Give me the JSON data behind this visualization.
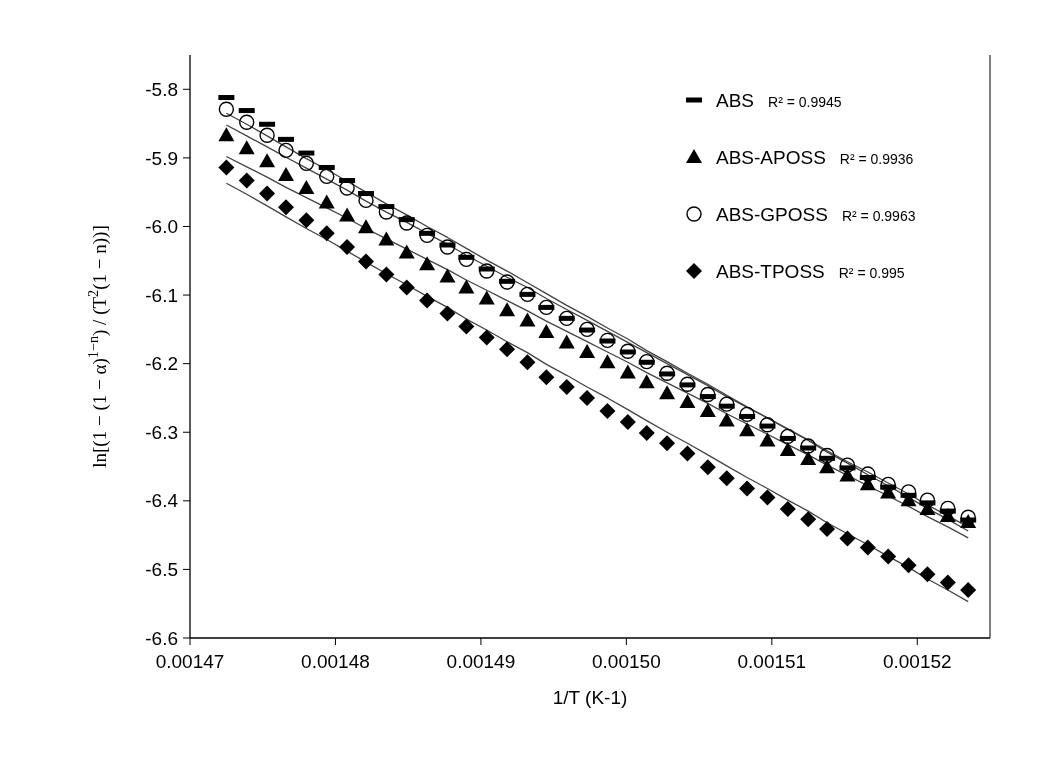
{
  "chart_data": {
    "type": "scatter",
    "xlabel": "1/T (K-1)",
    "ylabel": "ln[(1 − (1 − α)$^{1−n}$) / (T$^{2}$(1 − n))]",
    "xlim": [
      0.00147,
      0.001525
    ],
    "ylim": [
      -6.6,
      -5.75
    ],
    "xticks": [
      0.00147,
      0.00148,
      0.00149,
      {
        "value": 0.0015,
        "label": "0.00150"
      },
      0.00151,
      0.00152
    ],
    "yticks": [
      -6.6,
      -6.5,
      -6.4,
      -6.3,
      -6.2,
      -6.1,
      {
        "value": -6,
        "label": "-6.0"
      },
      -5.9,
      -5.8
    ],
    "legend": "top right",
    "grid": false,
    "annotations": [
      "R² = 0.9945",
      "R² = 0.9936",
      "R² = 0.9963",
      "R² = 0.995"
    ],
    "x": [
      0.0014725,
      0.0014739,
      0.0014753,
      0.0014766,
      0.001478,
      0.0014794,
      0.0014808,
      0.0014821,
      0.0014835,
      0.0014849,
      0.0014863,
      0.0014877,
      0.001489,
      0.0014904,
      0.0014918,
      0.0014932,
      0.0014945,
      0.0014959,
      0.0014973,
      0.0014987,
      0.0015001,
      0.0015014,
      0.0015028,
      0.0015042,
      0.0015056,
      0.0015069,
      0.0015083,
      0.0015097,
      0.0015111,
      0.0015125,
      0.0015138,
      0.0015152,
      0.0015166,
      0.001518,
      0.0015194,
      0.0015207,
      0.0015221,
      0.0015235
    ],
    "series": [
      {
        "name": "ABS",
        "marker": "square",
        "color": "#000000",
        "values": [
          -5.812,
          -5.831,
          -5.851,
          -5.873,
          -5.893,
          -5.914,
          -5.933,
          -5.952,
          -5.971,
          -5.99,
          -6.01,
          -6.027,
          -6.045,
          -6.062,
          -6.08,
          -6.099,
          -6.118,
          -6.134,
          -6.151,
          -6.167,
          -6.183,
          -6.198,
          -6.215,
          -6.231,
          -6.248,
          -6.262,
          -6.277,
          -6.291,
          -6.309,
          -6.323,
          -6.338,
          -6.352,
          -6.366,
          -6.38,
          -6.392,
          -6.403,
          -6.415,
          -6.428
        ]
      },
      {
        "name": "ABS-APOSS",
        "marker": "triangle",
        "color": "#000000",
        "values": [
          -5.867,
          -5.886,
          -5.905,
          -5.925,
          -5.944,
          -5.965,
          -5.984,
          -6.001,
          -6.019,
          -6.038,
          -6.055,
          -6.073,
          -6.089,
          -6.105,
          -6.122,
          -6.137,
          -6.154,
          -6.169,
          -6.183,
          -6.198,
          -6.213,
          -6.227,
          -6.243,
          -6.256,
          -6.269,
          -6.283,
          -6.297,
          -6.312,
          -6.326,
          -6.339,
          -6.351,
          -6.363,
          -6.376,
          -6.388,
          -6.399,
          -6.412,
          -6.422,
          -6.431
        ]
      },
      {
        "name": "ABS-GPOSS",
        "marker": "circle-open",
        "color": "#000000",
        "values": [
          -5.829,
          -5.848,
          -5.867,
          -5.889,
          -5.908,
          -5.927,
          -5.944,
          -5.962,
          -5.979,
          -5.995,
          -6.013,
          -6.03,
          -6.048,
          -6.065,
          -6.081,
          -6.099,
          -6.118,
          -6.134,
          -6.15,
          -6.166,
          -6.182,
          -6.197,
          -6.214,
          -6.23,
          -6.245,
          -6.259,
          -6.274,
          -6.289,
          -6.306,
          -6.32,
          -6.334,
          -6.348,
          -6.361,
          -6.376,
          -6.387,
          -6.399,
          -6.411,
          -6.424
        ]
      },
      {
        "name": "ABS-TPOSS",
        "marker": "diamond",
        "color": "#000000",
        "values": [
          -5.914,
          -5.933,
          -5.952,
          -5.972,
          -5.991,
          -6.01,
          -6.03,
          -6.051,
          -6.07,
          -6.089,
          -6.108,
          -6.127,
          -6.146,
          -6.162,
          -6.179,
          -6.198,
          -6.22,
          -6.234,
          -6.25,
          -6.269,
          -6.285,
          -6.301,
          -6.316,
          -6.331,
          -6.351,
          -6.367,
          -6.382,
          -6.395,
          -6.412,
          -6.427,
          -6.441,
          -6.455,
          -6.468,
          -6.481,
          -6.494,
          -6.507,
          -6.519,
          -6.53
        ]
      },
      {
        "type": "line",
        "color": "#444444",
        "values": [
          -5.835,
          -5.851,
          -5.868,
          -5.884,
          -5.901,
          -5.917,
          -5.934,
          -5.95,
          -5.967,
          -5.983,
          -6.0,
          -6.016,
          -6.032,
          -6.049,
          -6.065,
          -6.082,
          -6.098,
          -6.115,
          -6.131,
          -6.148,
          -6.164,
          -6.181,
          -6.197,
          -6.214,
          -6.23,
          -6.246,
          -6.263,
          -6.279,
          -6.296,
          -6.312,
          -6.329,
          -6.345,
          -6.362,
          -6.378,
          -6.395,
          -6.411,
          -6.427,
          -6.444
        ]
      },
      {
        "type": "line",
        "color": "#444444",
        "values": [
          -5.898,
          -5.913,
          -5.928,
          -5.943,
          -5.958,
          -5.973,
          -5.988,
          -6.003,
          -6.018,
          -6.033,
          -6.048,
          -6.063,
          -6.078,
          -6.093,
          -6.108,
          -6.123,
          -6.138,
          -6.153,
          -6.168,
          -6.183,
          -6.198,
          -6.213,
          -6.228,
          -6.243,
          -6.258,
          -6.273,
          -6.288,
          -6.303,
          -6.318,
          -6.333,
          -6.348,
          -6.363,
          -6.378,
          -6.393,
          -6.408,
          -6.423,
          -6.438,
          -6.454
        ]
      },
      {
        "type": "line",
        "color": "#444444",
        "values": [
          -5.852,
          -5.868,
          -5.884,
          -5.899,
          -5.915,
          -5.931,
          -5.947,
          -5.963,
          -5.979,
          -5.994,
          -6.01,
          -6.026,
          -6.042,
          -6.058,
          -6.074,
          -6.089,
          -6.105,
          -6.121,
          -6.137,
          -6.153,
          -6.169,
          -6.184,
          -6.2,
          -6.216,
          -6.232,
          -6.248,
          -6.264,
          -6.279,
          -6.295,
          -6.311,
          -6.327,
          -6.343,
          -6.358,
          -6.374,
          -6.39,
          -6.406,
          -6.422,
          -6.438
        ]
      },
      {
        "type": "line",
        "color": "#444444",
        "values": [
          -5.937,
          -5.953,
          -5.97,
          -5.986,
          -6.003,
          -6.019,
          -6.036,
          -6.052,
          -6.069,
          -6.085,
          -6.102,
          -6.118,
          -6.135,
          -6.151,
          -6.168,
          -6.184,
          -6.201,
          -6.217,
          -6.234,
          -6.25,
          -6.267,
          -6.283,
          -6.3,
          -6.316,
          -6.333,
          -6.349,
          -6.366,
          -6.382,
          -6.399,
          -6.415,
          -6.432,
          -6.448,
          -6.464,
          -6.481,
          -6.497,
          -6.514,
          -6.53,
          -6.547
        ]
      }
    ]
  }
}
